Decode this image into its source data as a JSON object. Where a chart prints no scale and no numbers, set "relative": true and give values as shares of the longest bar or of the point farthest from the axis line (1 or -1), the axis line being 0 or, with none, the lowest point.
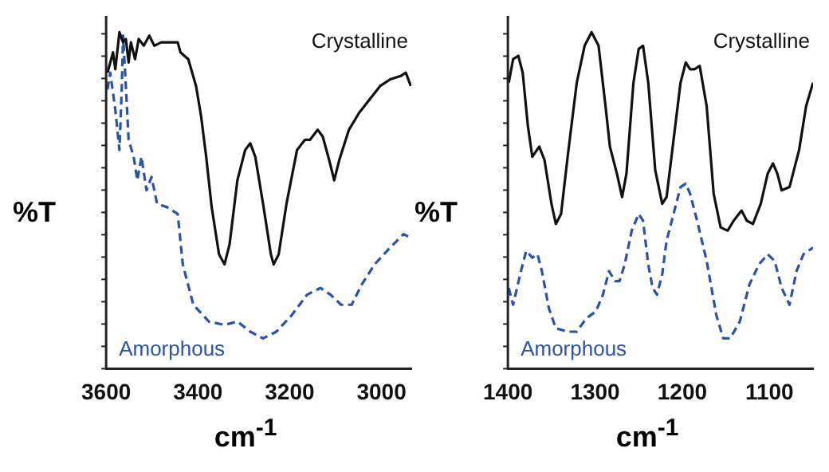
{
  "chart_data": [
    {
      "type": "line",
      "relative": true,
      "xlabel": "cm$^{-1}$",
      "ylabel": "%T",
      "xlim": [
        3600,
        2935
      ],
      "xticks": [
        3600,
        3400,
        3200,
        3000
      ],
      "grid": false,
      "legend": false,
      "marker": "none",
      "tick_labels": "x",
      "series": [
        {
          "name": "Crystalline",
          "color": "#111111",
          "line_style": "solid",
          "x": [
            3597,
            3585,
            3580,
            3571,
            3563,
            3557,
            3551,
            3546,
            3537,
            3529,
            3518,
            3506,
            3495,
            3480,
            3467,
            3455,
            3444,
            3438,
            3421,
            3404,
            3393,
            3382,
            3370,
            3354,
            3342,
            3331,
            3314,
            3297,
            3286,
            3275,
            3258,
            3241,
            3235,
            3224,
            3207,
            3184,
            3167,
            3156,
            3139,
            3128,
            3114,
            3103,
            3092,
            3071,
            3049,
            3026,
            3003,
            2981,
            2958,
            2947,
            2936
          ],
          "values": [
            0.88,
            0.94,
            0.89,
            1.0,
            0.97,
            0.98,
            0.91,
            0.97,
            0.92,
            0.98,
            0.96,
            0.99,
            0.96,
            0.97,
            0.97,
            0.97,
            0.97,
            0.94,
            0.92,
            0.84,
            0.75,
            0.63,
            0.48,
            0.34,
            0.31,
            0.37,
            0.56,
            0.65,
            0.67,
            0.63,
            0.49,
            0.34,
            0.31,
            0.34,
            0.49,
            0.65,
            0.68,
            0.68,
            0.71,
            0.69,
            0.62,
            0.56,
            0.62,
            0.71,
            0.76,
            0.8,
            0.84,
            0.86,
            0.87,
            0.88,
            0.84
          ]
        },
        {
          "name": "Amorphous",
          "color": "#2a52a8",
          "line_style": "dashed",
          "x": [
            3597,
            3591,
            3580,
            3571,
            3566,
            3563,
            3557,
            3551,
            3540,
            3532,
            3523,
            3512,
            3501,
            3489,
            3467,
            3444,
            3433,
            3410,
            3376,
            3342,
            3314,
            3286,
            3258,
            3229,
            3195,
            3162,
            3133,
            3111,
            3088,
            3065,
            3043,
            3015,
            2981,
            2952,
            2938
          ],
          "values": [
            0.83,
            0.88,
            0.77,
            0.65,
            0.83,
            0.99,
            0.84,
            0.68,
            0.63,
            0.56,
            0.63,
            0.53,
            0.57,
            0.49,
            0.48,
            0.46,
            0.31,
            0.19,
            0.14,
            0.13,
            0.14,
            0.11,
            0.09,
            0.11,
            0.16,
            0.22,
            0.24,
            0.22,
            0.19,
            0.19,
            0.25,
            0.31,
            0.36,
            0.4,
            0.39
          ]
        }
      ]
    },
    {
      "type": "line",
      "relative": true,
      "xlabel": "cm$^{-1}$",
      "ylabel": "%T",
      "xlim": [
        1400,
        1050
      ],
      "xticks": [
        1400,
        1300,
        1200,
        1100
      ],
      "grid": false,
      "legend": false,
      "marker": "none",
      "tick_labels": "x",
      "series": [
        {
          "name": "Crystalline",
          "color": "#111111",
          "line_style": "solid",
          "x": [
            1399,
            1394,
            1388,
            1383,
            1377,
            1372,
            1364,
            1358,
            1350,
            1345,
            1339,
            1331,
            1321,
            1312,
            1304,
            1296,
            1288,
            1283,
            1275,
            1269,
            1264,
            1256,
            1250,
            1245,
            1239,
            1231,
            1223,
            1218,
            1210,
            1202,
            1196,
            1191,
            1186,
            1180,
            1172,
            1164,
            1156,
            1148,
            1141,
            1132,
            1126,
            1119,
            1110,
            1102,
            1096,
            1091,
            1086,
            1077,
            1066,
            1058,
            1050
          ],
          "values": [
            0.85,
            0.92,
            0.93,
            0.88,
            0.72,
            0.63,
            0.66,
            0.62,
            0.49,
            0.43,
            0.46,
            0.64,
            0.85,
            0.96,
            1.0,
            0.96,
            0.78,
            0.66,
            0.58,
            0.51,
            0.58,
            0.85,
            0.95,
            0.96,
            0.85,
            0.59,
            0.49,
            0.51,
            0.68,
            0.85,
            0.91,
            0.89,
            0.89,
            0.9,
            0.78,
            0.52,
            0.42,
            0.41,
            0.44,
            0.47,
            0.44,
            0.43,
            0.49,
            0.58,
            0.61,
            0.58,
            0.53,
            0.54,
            0.65,
            0.78,
            0.85
          ]
        },
        {
          "name": "Amorphous",
          "color": "#2a52a8",
          "line_style": "dashed",
          "x": [
            1399,
            1394,
            1385,
            1379,
            1372,
            1366,
            1361,
            1353,
            1345,
            1331,
            1321,
            1310,
            1299,
            1291,
            1284,
            1277,
            1272,
            1266,
            1258,
            1250,
            1245,
            1239,
            1234,
            1229,
            1223,
            1218,
            1210,
            1202,
            1196,
            1191,
            1183,
            1172,
            1161,
            1153,
            1145,
            1134,
            1123,
            1112,
            1102,
            1094,
            1086,
            1077,
            1069,
            1061,
            1050
          ],
          "values": [
            0.24,
            0.19,
            0.29,
            0.35,
            0.33,
            0.34,
            0.29,
            0.18,
            0.12,
            0.11,
            0.11,
            0.15,
            0.17,
            0.22,
            0.29,
            0.26,
            0.26,
            0.31,
            0.41,
            0.46,
            0.44,
            0.31,
            0.24,
            0.22,
            0.28,
            0.38,
            0.46,
            0.54,
            0.55,
            0.52,
            0.44,
            0.32,
            0.16,
            0.09,
            0.09,
            0.14,
            0.25,
            0.31,
            0.34,
            0.32,
            0.24,
            0.19,
            0.29,
            0.34,
            0.36
          ]
        }
      ]
    }
  ]
}
